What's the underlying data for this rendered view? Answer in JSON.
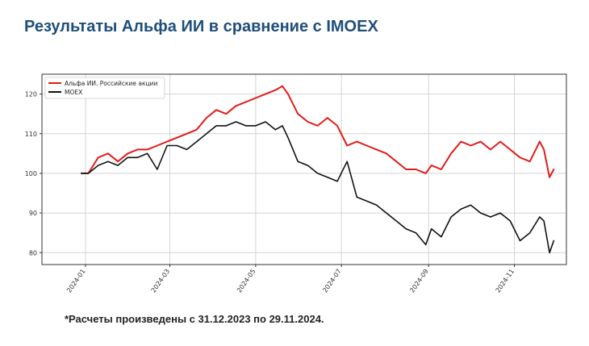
{
  "header": {
    "title": "Результаты Альфа ИИ в сравнение с IMOEX"
  },
  "footnote": "*Расчеты произведены с 31.12.2023 по 29.11.2024.",
  "chart_data": {
    "type": "line",
    "title": "",
    "xlabel": "",
    "ylabel": "",
    "grid": true,
    "legend_position": "top-left",
    "x_range": [
      "2023-12-01",
      "2024-12-08"
    ],
    "ylim": [
      77,
      125
    ],
    "x_ticks": [
      "2024-01",
      "2024-03",
      "2024-05",
      "2024-07",
      "2024-09",
      "2024-11"
    ],
    "y_ticks": [
      80,
      90,
      100,
      110,
      120
    ],
    "series": [
      {
        "name": "Альфа ИИ. Российские акции",
        "color": "#e31b1b",
        "x": [
          "2023-12-29",
          "2024-01-03",
          "2024-01-10",
          "2024-01-17",
          "2024-01-24",
          "2024-01-31",
          "2024-02-07",
          "2024-02-14",
          "2024-02-21",
          "2024-02-28",
          "2024-03-06",
          "2024-03-13",
          "2024-03-20",
          "2024-03-27",
          "2024-04-03",
          "2024-04-10",
          "2024-04-17",
          "2024-04-24",
          "2024-05-01",
          "2024-05-08",
          "2024-05-15",
          "2024-05-20",
          "2024-05-24",
          "2024-05-31",
          "2024-06-07",
          "2024-06-14",
          "2024-06-21",
          "2024-06-28",
          "2024-07-05",
          "2024-07-12",
          "2024-07-19",
          "2024-07-26",
          "2024-08-02",
          "2024-08-09",
          "2024-08-16",
          "2024-08-23",
          "2024-08-30",
          "2024-09-03",
          "2024-09-10",
          "2024-09-17",
          "2024-09-24",
          "2024-10-01",
          "2024-10-08",
          "2024-10-15",
          "2024-10-22",
          "2024-10-29",
          "2024-11-05",
          "2024-11-12",
          "2024-11-19",
          "2024-11-22",
          "2024-11-26",
          "2024-11-29"
        ],
        "values": [
          100,
          100,
          104,
          105,
          103,
          105,
          106,
          106,
          107,
          108,
          109,
          110,
          111,
          114,
          116,
          115,
          117,
          118,
          119,
          120,
          121,
          122,
          120,
          115,
          113,
          112,
          114,
          112,
          107,
          108,
          107,
          106,
          105,
          103,
          101,
          101,
          100,
          102,
          101,
          105,
          108,
          107,
          108,
          106,
          108,
          106,
          104,
          103,
          108,
          106,
          99,
          101
        ]
      },
      {
        "name": "MOEX",
        "color": "#111111",
        "x": [
          "2023-12-29",
          "2024-01-03",
          "2024-01-10",
          "2024-01-17",
          "2024-01-24",
          "2024-01-31",
          "2024-02-07",
          "2024-02-14",
          "2024-02-21",
          "2024-02-28",
          "2024-03-06",
          "2024-03-13",
          "2024-03-20",
          "2024-03-27",
          "2024-04-03",
          "2024-04-10",
          "2024-04-17",
          "2024-04-24",
          "2024-05-01",
          "2024-05-08",
          "2024-05-15",
          "2024-05-20",
          "2024-05-24",
          "2024-05-31",
          "2024-06-07",
          "2024-06-14",
          "2024-06-21",
          "2024-06-28",
          "2024-07-05",
          "2024-07-12",
          "2024-07-19",
          "2024-07-26",
          "2024-08-02",
          "2024-08-09",
          "2024-08-16",
          "2024-08-23",
          "2024-08-30",
          "2024-09-03",
          "2024-09-10",
          "2024-09-17",
          "2024-09-24",
          "2024-10-01",
          "2024-10-08",
          "2024-10-15",
          "2024-10-22",
          "2024-10-29",
          "2024-11-05",
          "2024-11-12",
          "2024-11-19",
          "2024-11-22",
          "2024-11-26",
          "2024-11-29"
        ],
        "values": [
          100,
          100,
          102,
          103,
          102,
          104,
          104,
          105,
          101,
          107,
          107,
          106,
          108,
          110,
          112,
          112,
          113,
          112,
          112,
          113,
          111,
          112,
          109,
          103,
          102,
          100,
          99,
          98,
          103,
          94,
          93,
          92,
          90,
          88,
          86,
          85,
          82,
          86,
          84,
          89,
          91,
          92,
          90,
          89,
          90,
          88,
          83,
          85,
          89,
          88,
          80,
          83
        ]
      }
    ]
  }
}
